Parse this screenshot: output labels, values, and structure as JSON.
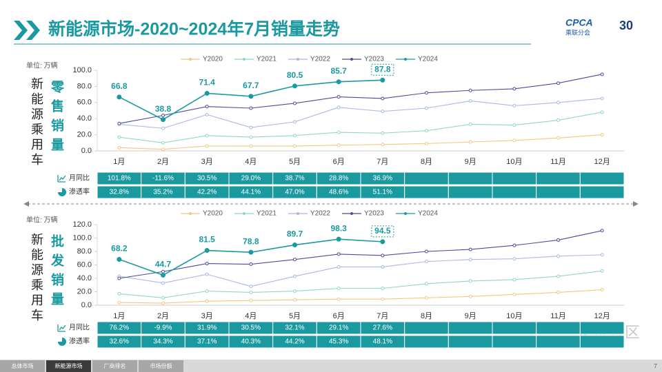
{
  "header": {
    "title": "新能源市场-2020~2024年7月销量走势",
    "logo": "CPCA",
    "logo_sub": "乘联分会",
    "anniversary": "30"
  },
  "side_label": "新能源乘用车",
  "chart_data": [
    {
      "type": "line",
      "title": "零售销量",
      "unit": "单位: 万辆",
      "categories": [
        "1月",
        "2月",
        "3月",
        "4月",
        "5月",
        "6月",
        "7月",
        "8月",
        "9月",
        "10月",
        "11月",
        "12月"
      ],
      "ylim": [
        0,
        100
      ],
      "yticks": [
        {
          "value": 0,
          "label": "0.0"
        },
        {
          "value": 20,
          "label": "20.0"
        },
        {
          "value": 40,
          "label": "40.0"
        },
        {
          "value": 60,
          "label": "60.0"
        },
        {
          "value": 80,
          "label": "80.0"
        },
        {
          "value": 100,
          "label": "100.0"
        }
      ],
      "series": [
        {
          "name": "Y2020",
          "color": "#f5c77e",
          "values": [
            4,
            2,
            6,
            6,
            6,
            7,
            8,
            9,
            11,
            13,
            16,
            20
          ]
        },
        {
          "name": "Y2021",
          "color": "#8fd9b6",
          "values": [
            17,
            10,
            19,
            17,
            19,
            23,
            22,
            25,
            33,
            32,
            38,
            48
          ]
        },
        {
          "name": "Y2022",
          "color": "#aab8e8",
          "values": [
            33,
            28,
            45,
            29,
            36,
            54,
            49,
            53,
            62,
            56,
            60,
            65
          ]
        },
        {
          "name": "Y2023",
          "color": "#4a4a9c",
          "values": [
            34,
            44,
            55,
            53,
            59,
            67,
            65,
            72,
            75,
            77,
            84,
            95
          ]
        },
        {
          "name": "Y2024",
          "color": "#1a9aa0",
          "labels": true,
          "values": [
            66.8,
            38.8,
            71.4,
            67.7,
            80.5,
            85.7,
            87.8,
            null,
            null,
            null,
            null,
            null
          ]
        }
      ],
      "table": {
        "rows": [
          {
            "label": "月同比",
            "values": [
              "101.8%",
              "-11.6%",
              "30.5%",
              "29.0%",
              "38.7%",
              "28.8%",
              "36.9%"
            ]
          },
          {
            "label": "渗透率",
            "values": [
              "32.8%",
              "35.2%",
              "42.2%",
              "44.1%",
              "47.0%",
              "48.6%",
              "51.1%"
            ]
          }
        ]
      }
    },
    {
      "type": "line",
      "title": "批发销量",
      "unit": "单位: 万辆",
      "categories": [
        "1月",
        "2月",
        "3月",
        "4月",
        "5月",
        "6月",
        "7月",
        "8月",
        "9月",
        "10月",
        "11月",
        "12月"
      ],
      "ylim": [
        0,
        120
      ],
      "yticks": [
        {
          "value": 0,
          "label": "0.0"
        },
        {
          "value": 20,
          "label": "20.0"
        },
        {
          "value": 40,
          "label": "40.0"
        },
        {
          "value": 60,
          "label": "60.0"
        },
        {
          "value": 80,
          "label": "80.0"
        },
        {
          "value": 100,
          "label": "100.0"
        },
        {
          "value": 120,
          "label": "120.0"
        }
      ],
      "series": [
        {
          "name": "Y2020",
          "color": "#f5c77e",
          "values": [
            4,
            3,
            6,
            7,
            8,
            9,
            9,
            11,
            13,
            16,
            19,
            23
          ]
        },
        {
          "name": "Y2021",
          "color": "#8fd9b6",
          "values": [
            17,
            11,
            21,
            19,
            21,
            25,
            25,
            32,
            36,
            38,
            43,
            51
          ]
        },
        {
          "name": "Y2022",
          "color": "#aab8e8",
          "values": [
            43,
            33,
            46,
            28,
            43,
            57,
            57,
            65,
            68,
            69,
            73,
            75
          ]
        },
        {
          "name": "Y2023",
          "color": "#4a4a9c",
          "values": [
            40,
            50,
            62,
            61,
            68,
            76,
            74,
            80,
            83,
            89,
            97,
            111
          ]
        },
        {
          "name": "Y2024",
          "color": "#1a9aa0",
          "labels": true,
          "values": [
            68.2,
            44.7,
            81.5,
            78.8,
            89.7,
            98.3,
            94.5,
            null,
            null,
            null,
            null,
            null
          ]
        }
      ],
      "table": {
        "rows": [
          {
            "label": "月同比",
            "values": [
              "76.2%",
              "-9.9%",
              "31.9%",
              "30.5%",
              "32.1%",
              "29.1%",
              "27.6%"
            ]
          },
          {
            "label": "渗透率",
            "values": [
              "32.6%",
              "34.3%",
              "37.1%",
              "40.3%",
              "44.2%",
              "45.3%",
              "48.1%"
            ]
          }
        ]
      }
    }
  ],
  "footer": {
    "tabs": [
      "总体市场",
      "新能源市场",
      "厂商排名",
      "市场份额"
    ],
    "active": 1,
    "page": "7",
    "watermark": "老虎社区"
  }
}
